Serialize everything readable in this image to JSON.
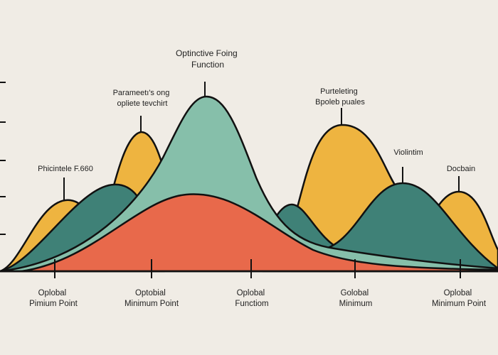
{
  "title": [
    "Optinctive Foing",
    "Function"
  ],
  "annotations": [
    {
      "lines": [
        "Parameetı's ong",
        "opliete tevchirt"
      ]
    },
    {
      "lines": [
        "Phicintele F.660"
      ]
    },
    {
      "lines": [
        "Purteleting",
        "Bpoleb puales"
      ]
    },
    {
      "lines": [
        "Violintim"
      ]
    },
    {
      "lines": [
        "Docbain"
      ]
    }
  ],
  "bottom_labels": [
    {
      "lines": [
        "Oplobal",
        "Pimium Point"
      ]
    },
    {
      "lines": [
        "Optobial",
        "Minimum Point"
      ]
    },
    {
      "lines": [
        "Oplobal",
        "Functiom"
      ]
    },
    {
      "lines": [
        "Golobal",
        "Minimum"
      ]
    },
    {
      "lines": [
        "Oplobal",
        "Minimum Point"
      ]
    }
  ],
  "colors": {
    "background": "#f0ece5",
    "yellow": "#eeb440",
    "teal_dark": "#3f8177",
    "teal_light": "#86bfaa",
    "orange": "#e8694b",
    "outline": "#111111"
  }
}
